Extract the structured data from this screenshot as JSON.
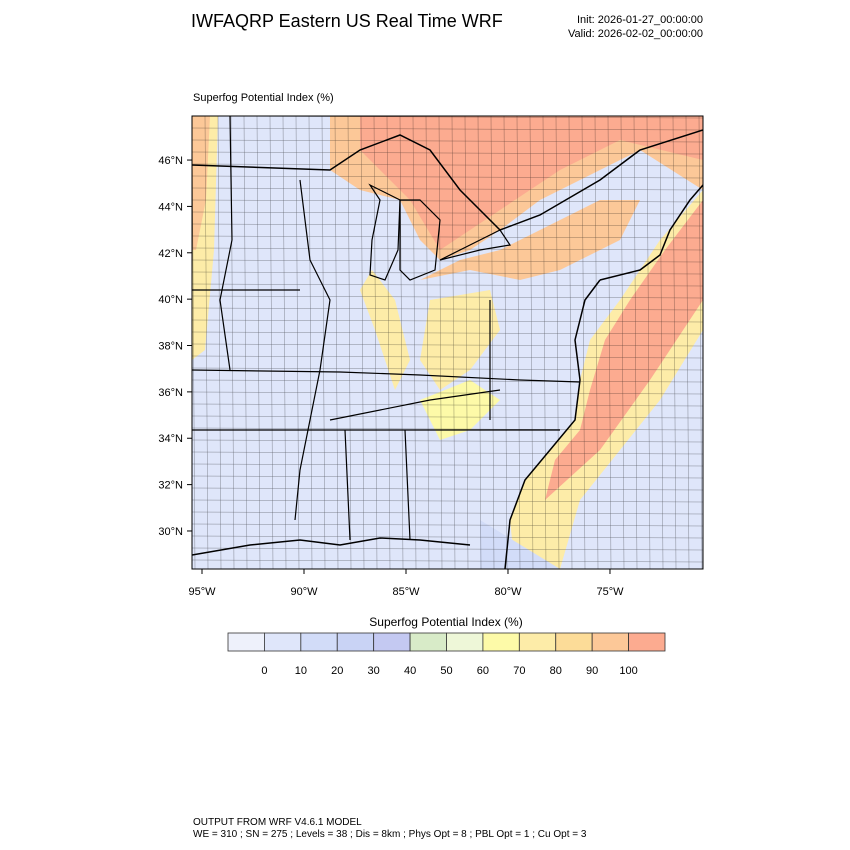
{
  "header": {
    "title": "IWFAQRP Eastern US Real Time WRF",
    "init": "Init: 2026-01-27_00:00:00",
    "valid": "Valid: 2026-02-02_00:00:00"
  },
  "map": {
    "field_title": "Superfog Potential Index   (%)",
    "ylim": [
      28.36,
      47.9
    ],
    "yticks": [
      {
        "value": 30,
        "label": "30°N"
      },
      {
        "value": 32,
        "label": "32°N"
      },
      {
        "value": 34,
        "label": "34°N"
      },
      {
        "value": 36,
        "label": "36°N"
      },
      {
        "value": 38,
        "label": "38°N"
      },
      {
        "value": 40,
        "label": "40°N"
      },
      {
        "value": 42,
        "label": "42°N"
      },
      {
        "value": 44,
        "label": "44°N"
      },
      {
        "value": 46,
        "label": "46°N"
      }
    ],
    "xlim": [
      -95.49,
      -70.44
    ],
    "xticks": [
      {
        "value": -95,
        "label": "95°W"
      },
      {
        "value": -90,
        "label": "90°W"
      },
      {
        "value": -85,
        "label": "85°W"
      },
      {
        "value": -80,
        "label": "80°W"
      },
      {
        "value": -75,
        "label": "75°W"
      }
    ]
  },
  "colorbar": {
    "title": "Superfog Potential Index  (%)",
    "levels": [
      0,
      10,
      20,
      30,
      40,
      50,
      60,
      70,
      80,
      90,
      100
    ],
    "colors": [
      "#eef1fb",
      "#dfe6fa",
      "#d2dcf8",
      "#c9d3f5",
      "#c4c9f2",
      "#d8ebc8",
      "#eef7d8",
      "#fdfaa8",
      "#fdeca8",
      "#fcdc98",
      "#fcc898",
      "#fcab90"
    ]
  },
  "footer": {
    "line1": "OUTPUT FROM WRF V4.6.1 MODEL",
    "line2": "WE = 310 ; SN = 275 ; Levels = 38 ; Dis = 8km ; Phys Opt = 8 ; PBL Opt = 1 ; Cu Opt = 3"
  }
}
